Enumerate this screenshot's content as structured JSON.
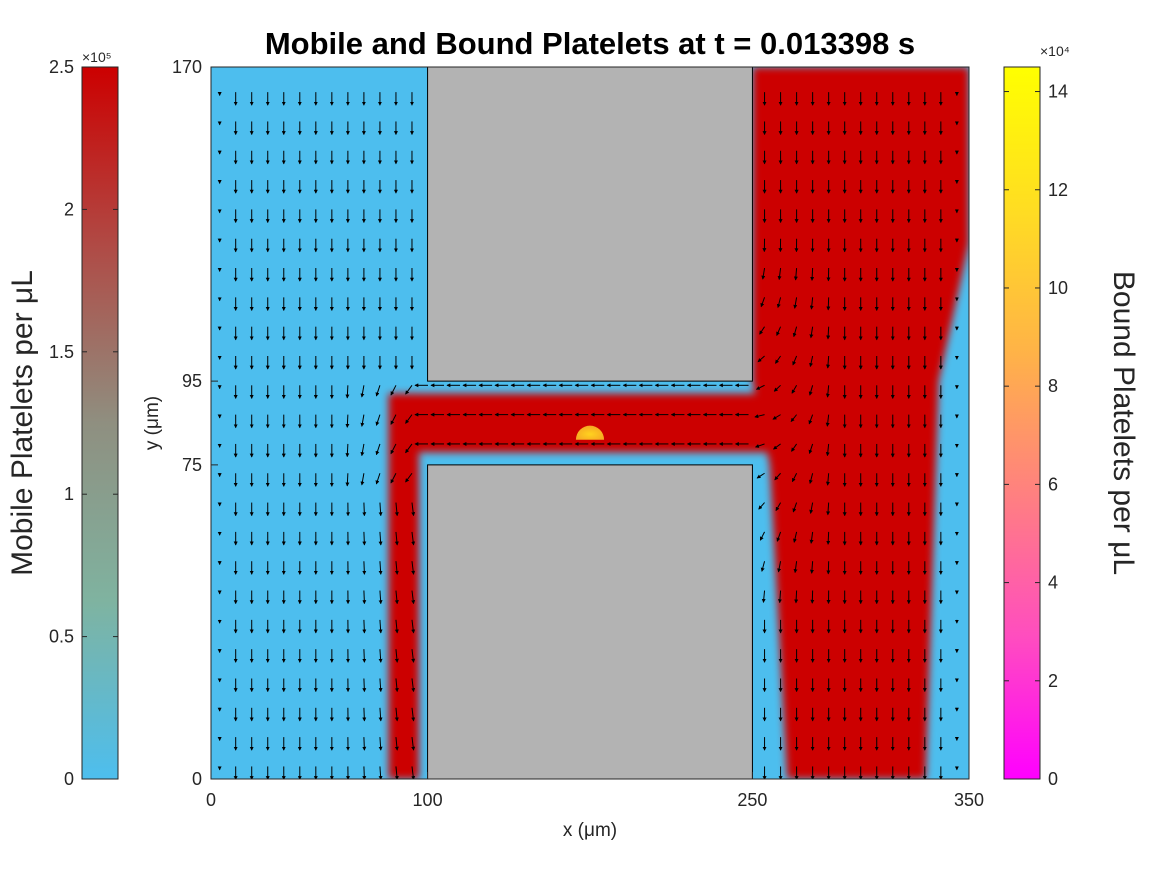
{
  "chart_data": {
    "type": "heatmap",
    "title": "Mobile and Bound Platelets at t = 0.013398 s",
    "xlabel": "x (μm)",
    "ylabel": "y (μm)",
    "xlim": [
      0,
      350
    ],
    "ylim": [
      0,
      170
    ],
    "x_ticks": [
      "0",
      "100",
      "250",
      "350"
    ],
    "x_tick_values": [
      0,
      100,
      250,
      350
    ],
    "y_ticks": [
      "0",
      "75",
      "95",
      "170"
    ],
    "y_tick_values": [
      0,
      75,
      95,
      170
    ],
    "colors": {
      "low": "#4dbeee",
      "high": "#cc0000",
      "wall": "#b3b3b3",
      "bound_low": "#ff00ff",
      "bound_high": "#ffff00"
    },
    "walls": [
      {
        "x": [
          100,
          250
        ],
        "y": [
          95,
          170
        ]
      },
      {
        "x": [
          100,
          250
        ],
        "y": [
          0,
          75
        ]
      }
    ],
    "mobile_region": {
      "channel_y": [
        78,
        92
      ],
      "left_column_x": [
        82,
        96
      ],
      "left_column_y": [
        0,
        92
      ],
      "right_column_bottom_x": [
        266,
        330
      ],
      "right_column_top_x": [
        250,
        350
      ]
    },
    "bound_platelet_clot": {
      "x": 175,
      "y": 81,
      "radius": 6.5
    },
    "colorbar_mobile": {
      "label": "Mobile Platelets per μL",
      "multiplier": "×10⁵",
      "ticks": [
        "0",
        "0.5",
        "1",
        "1.5",
        "2",
        "2.5"
      ],
      "tick_values": [
        0,
        0.5,
        1,
        1.5,
        2,
        2.5
      ],
      "range": [
        0,
        2.5
      ],
      "stops": [
        "#4dbeee",
        "#7fb3a0",
        "#8f8f80",
        "#b04a45",
        "#cc0000"
      ]
    },
    "colorbar_bound": {
      "label": "Bound Platelets per μL",
      "multiplier": "×10⁴",
      "ticks": [
        "0",
        "2",
        "4",
        "6",
        "8",
        "10",
        "12",
        "14"
      ],
      "tick_values": [
        0,
        2,
        4,
        6,
        8,
        10,
        12,
        14
      ],
      "range": [
        0,
        14.5
      ],
      "stops": [
        "#ff00ff",
        "#ff4dbf",
        "#ff8080",
        "#ffb347",
        "#ffdd22",
        "#ffff00"
      ]
    }
  }
}
